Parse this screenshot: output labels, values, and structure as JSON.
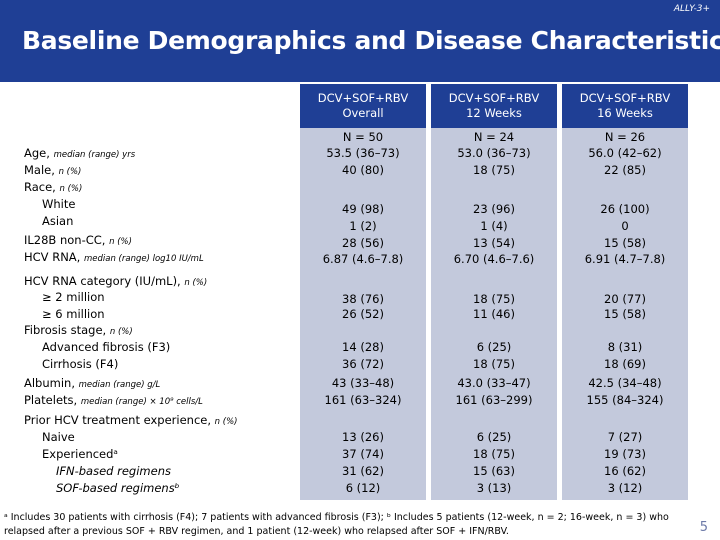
{
  "study_tag": "ALLY-3+",
  "title": "Baseline Demographics and Disease Characteristics",
  "columns": [
    {
      "line1": "DCV+SOF+RBV",
      "line2": "Overall",
      "n": "N = 50"
    },
    {
      "line1": "DCV+SOF+RBV",
      "line2": "12 Weeks",
      "n": "N = 24"
    },
    {
      "line1": "DCV+SOF+RBV",
      "line2": "16 Weeks",
      "n": "N = 26"
    }
  ],
  "rows": [
    {
      "label": "Age, ",
      "suffix": "median (range) yrs",
      "values": [
        "53.5 (36–73)",
        "53.0 (36–73)",
        "56.0 (42–62)"
      ]
    },
    {
      "label": "Male, ",
      "suffix": "n (%)",
      "values": [
        "40 (80)",
        "18 (75)",
        "22 (85)"
      ]
    },
    {
      "label": "Race, ",
      "suffix": "n (%)",
      "values": [
        "",
        "",
        ""
      ]
    },
    {
      "label": "White",
      "suffix": "",
      "values": [
        "49 (98)",
        "23 (96)",
        "26 (100)"
      ]
    },
    {
      "label": "Asian",
      "suffix": "",
      "values": [
        "1 (2)",
        "1 (4)",
        "0"
      ]
    },
    {
      "label": "IL28B non-CC, ",
      "suffix": "n (%)",
      "values": [
        "28 (56)",
        "13 (54)",
        "15 (58)"
      ]
    },
    {
      "label": "HCV RNA, ",
      "suffix": "median (range) log10 IU/mL",
      "values": [
        "6.87 (4.6–7.8)",
        "6.70 (4.6–7.6)",
        "6.91 (4.7–7.8)"
      ]
    },
    {
      "label": "HCV RNA category (IU/mL), ",
      "suffix": "n (%)",
      "values": [
        "",
        "",
        ""
      ]
    },
    {
      "label": "≥ 2 million",
      "suffix": "",
      "values": [
        "38 (76)",
        "18 (75)",
        "20 (77)"
      ]
    },
    {
      "label": "≥ 6 million",
      "suffix": "",
      "values": [
        "26 (52)",
        "11 (46)",
        "15 (58)"
      ]
    },
    {
      "label": "Fibrosis stage, ",
      "suffix": "n (%)",
      "values": [
        "",
        "",
        ""
      ]
    },
    {
      "label": "Advanced fibrosis (F3)",
      "suffix": "",
      "values": [
        "14 (28)",
        "6 (25)",
        "8 (31)"
      ]
    },
    {
      "label": "Cirrhosis (F4)",
      "suffix": "",
      "values": [
        "36 (72)",
        "18 (75)",
        "18 (69)"
      ]
    },
    {
      "label": "Albumin, ",
      "suffix": "median (range) g/L",
      "values": [
        "43 (33–48)",
        "43.0 (33–47)",
        "42.5 (34–48)"
      ]
    },
    {
      "label": "Platelets, ",
      "suffix": "median (range) × 10⁹ cells/L",
      "values": [
        "161 (63–324)",
        "161 (63–299)",
        "155 (84–324)"
      ]
    },
    {
      "label": "Prior HCV treatment experience, ",
      "suffix": "n (%)",
      "values": [
        "",
        "",
        ""
      ]
    },
    {
      "label": "Naive",
      "suffix": "",
      "values": [
        "13 (26)",
        "6 (25)",
        "7 (27)"
      ]
    },
    {
      "label": "Experiencedᵃ",
      "suffix": "",
      "values": [
        "37 (74)",
        "18 (75)",
        "19 (73)"
      ]
    },
    {
      "label": "IFN-based regimens",
      "suffix": "",
      "values": [
        "31 (62)",
        "15 (63)",
        "16 (62)"
      ]
    },
    {
      "label": "SOF-based regimensᵇ",
      "suffix": "",
      "values": [
        "6 (12)",
        "3 (13)",
        "3 (12)"
      ]
    }
  ],
  "footnote_line1": "ᵃ Includes 30 patients with cirrhosis (F4); 7 patients with advanced fibrosis (F3); ᵇ Includes 5 patients (12-week, n = 2; 16-week, n = 3) who",
  "footnote_line2": "relapsed after a previous SOF + RBV regimen, and 1 patient (12-week) who relapsed after SOF + IFN/RBV.",
  "page_number": "5"
}
